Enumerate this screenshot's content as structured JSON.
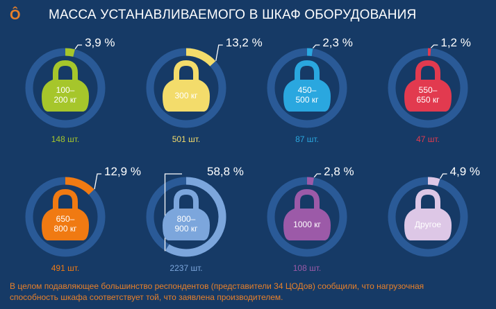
{
  "header": {
    "logo_glyph": "Ô",
    "title": "МАССА УСТАНАВЛИВАЕМОГО В ШКАФ ОБОРУДОВАНИЯ"
  },
  "footnote": "В целом подавляющее большинство респондентов (представители 34 ЦОДов) сообщили, что нагрузочная способность шкафа соответствует той, что заявлена производителем.",
  "colors": {
    "background": "#163a66",
    "ring_track": "#2a5a97",
    "accent": "#e8802a"
  },
  "chart_data": {
    "type": "pie",
    "title": "МАССА УСТАНАВЛИВАЕМОГО В ШКАФ ОБОРУДОВАНИЯ",
    "unit": "%",
    "categories": [
      {
        "label_lines": [
          "100–",
          "200 кг"
        ],
        "percent": 3.9,
        "percent_label": "3,9 %",
        "count_label": "148 шт.",
        "color": "#a6c62b"
      },
      {
        "label_lines": [
          "300 кг"
        ],
        "percent": 13.2,
        "percent_label": "13,2 %",
        "count_label": "501 шт.",
        "color": "#f3dc6b"
      },
      {
        "label_lines": [
          "450–",
          "500 кг"
        ],
        "percent": 2.3,
        "percent_label": "2,3 %",
        "count_label": "87 шт.",
        "color": "#2aa7df"
      },
      {
        "label_lines": [
          "550–",
          "650 кг"
        ],
        "percent": 1.2,
        "percent_label": "1,2 %",
        "count_label": "47 шт.",
        "color": "#e23a4f"
      },
      {
        "label_lines": [
          "650–",
          "800 кг"
        ],
        "percent": 12.9,
        "percent_label": "12,9 %",
        "count_label": "491 шт.",
        "color": "#f07a12"
      },
      {
        "label_lines": [
          "800–",
          "900 кг"
        ],
        "percent": 58.8,
        "percent_label": "58,8 %",
        "count_label": "2237 шт.",
        "color": "#7ca6dc"
      },
      {
        "label_lines": [
          "1000 кг"
        ],
        "percent": 2.8,
        "percent_label": "2,8 %",
        "count_label": "108 шт.",
        "color": "#9c5aa8"
      },
      {
        "label_lines": [
          "Другое"
        ],
        "percent": 4.9,
        "percent_label": "4,9 %",
        "count_label": "",
        "color": "#ddc7e6"
      }
    ]
  }
}
